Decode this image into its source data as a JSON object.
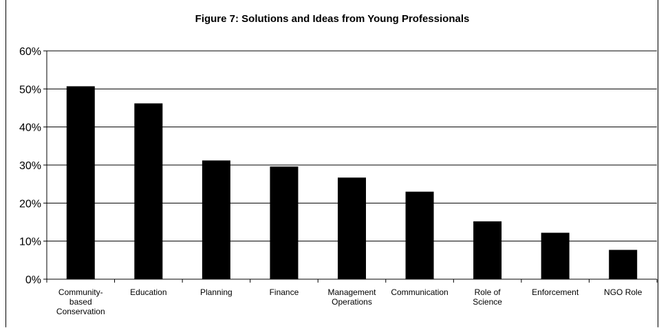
{
  "chart_data": {
    "type": "bar",
    "title": "Figure 7: Solutions and Ideas from Young Professionals",
    "xlabel": "",
    "ylabel": "",
    "categories": [
      [
        "Community-",
        "based",
        "Conservation"
      ],
      [
        "Education"
      ],
      [
        "Planning"
      ],
      [
        "Finance"
      ],
      [
        "Management",
        "Operations"
      ],
      [
        "Communication"
      ],
      [
        "Role of",
        "Science"
      ],
      [
        "Enforcement"
      ],
      [
        "NGO Role"
      ]
    ],
    "values": [
      0.507,
      0.462,
      0.312,
      0.296,
      0.267,
      0.23,
      0.152,
      0.122,
      0.077
    ],
    "ylim": [
      0,
      0.6
    ],
    "yticks": [
      "0%",
      "10%",
      "20%",
      "30%",
      "40%",
      "50%",
      "60%"
    ],
    "grid": true,
    "bar_color": "#000000"
  }
}
